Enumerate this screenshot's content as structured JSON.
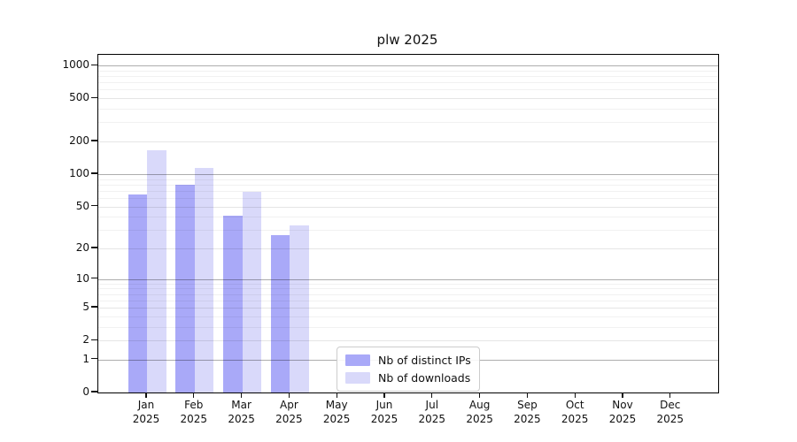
{
  "title": "plw 2025",
  "chart_data": {
    "type": "bar",
    "title": "plw 2025",
    "categories": [
      "Jan",
      "Feb",
      "Mar",
      "Apr",
      "May",
      "Jun",
      "Jul",
      "Aug",
      "Sep",
      "Oct",
      "Nov",
      "Dec"
    ],
    "x_tick_year_line": "2025",
    "series": [
      {
        "name": "Nb of distinct IPs",
        "color": "#a9a9f8",
        "values": [
          65,
          80,
          41,
          27,
          null,
          null,
          null,
          null,
          null,
          null,
          null,
          null
        ]
      },
      {
        "name": "Nb of downloads",
        "color": "#d9d9fa",
        "values": [
          165,
          115,
          69,
          33,
          null,
          null,
          null,
          null,
          null,
          null,
          null,
          null
        ]
      }
    ],
    "y_scale": "log10(1+y)",
    "y_ticks": [
      0,
      1,
      2,
      5,
      10,
      20,
      50,
      100,
      200,
      500,
      1000
    ],
    "y_max": 1255,
    "xlabel": "",
    "ylabel": "",
    "grid": "horizontal-only",
    "legend_position": "lower-center"
  }
}
